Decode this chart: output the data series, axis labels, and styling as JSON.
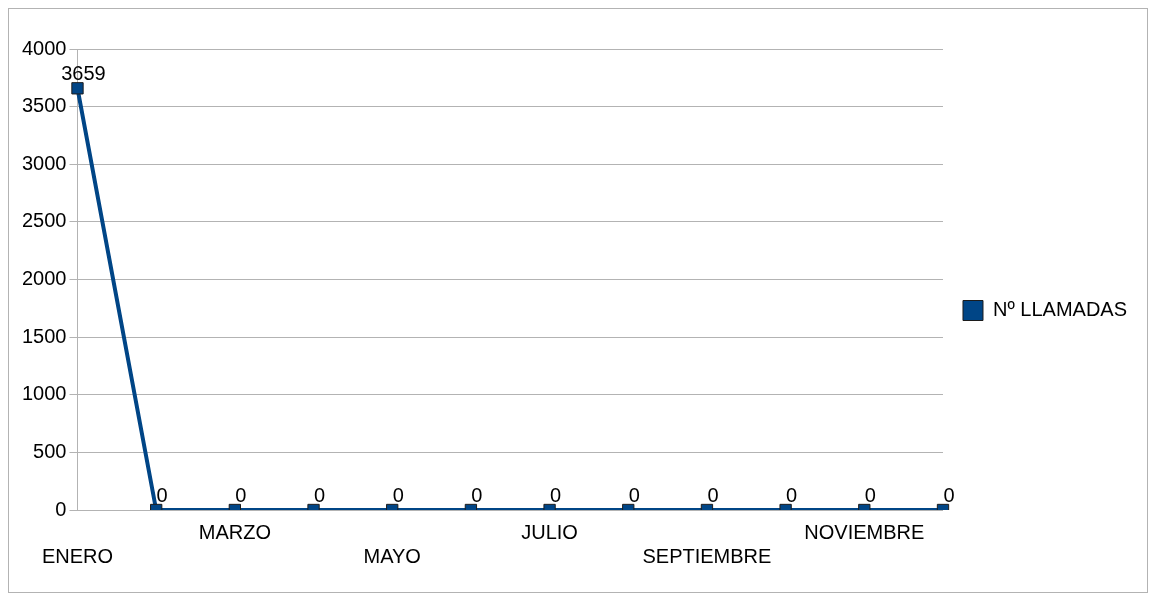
{
  "chart_data": {
    "type": "line",
    "categories": [
      "ENERO",
      null,
      "MARZO",
      null,
      "MAYO",
      null,
      "JULIO",
      null,
      "SEPTIEMBRE",
      null,
      "NOVIEMBRE",
      null
    ],
    "series": [
      {
        "name": "Nº LLAMADAS",
        "color": "#004586",
        "values": [
          3659,
          0,
          0,
          0,
          0,
          0,
          0,
          0,
          0,
          0,
          0,
          0
        ]
      }
    ],
    "ylim": [
      0,
      4000
    ],
    "yticks": [
      0,
      500,
      1000,
      1500,
      2000,
      2500,
      3000,
      3500,
      4000
    ],
    "grid": "y",
    "legend": "right",
    "marker": "square",
    "line_style": "solid",
    "data_labels": true
  }
}
